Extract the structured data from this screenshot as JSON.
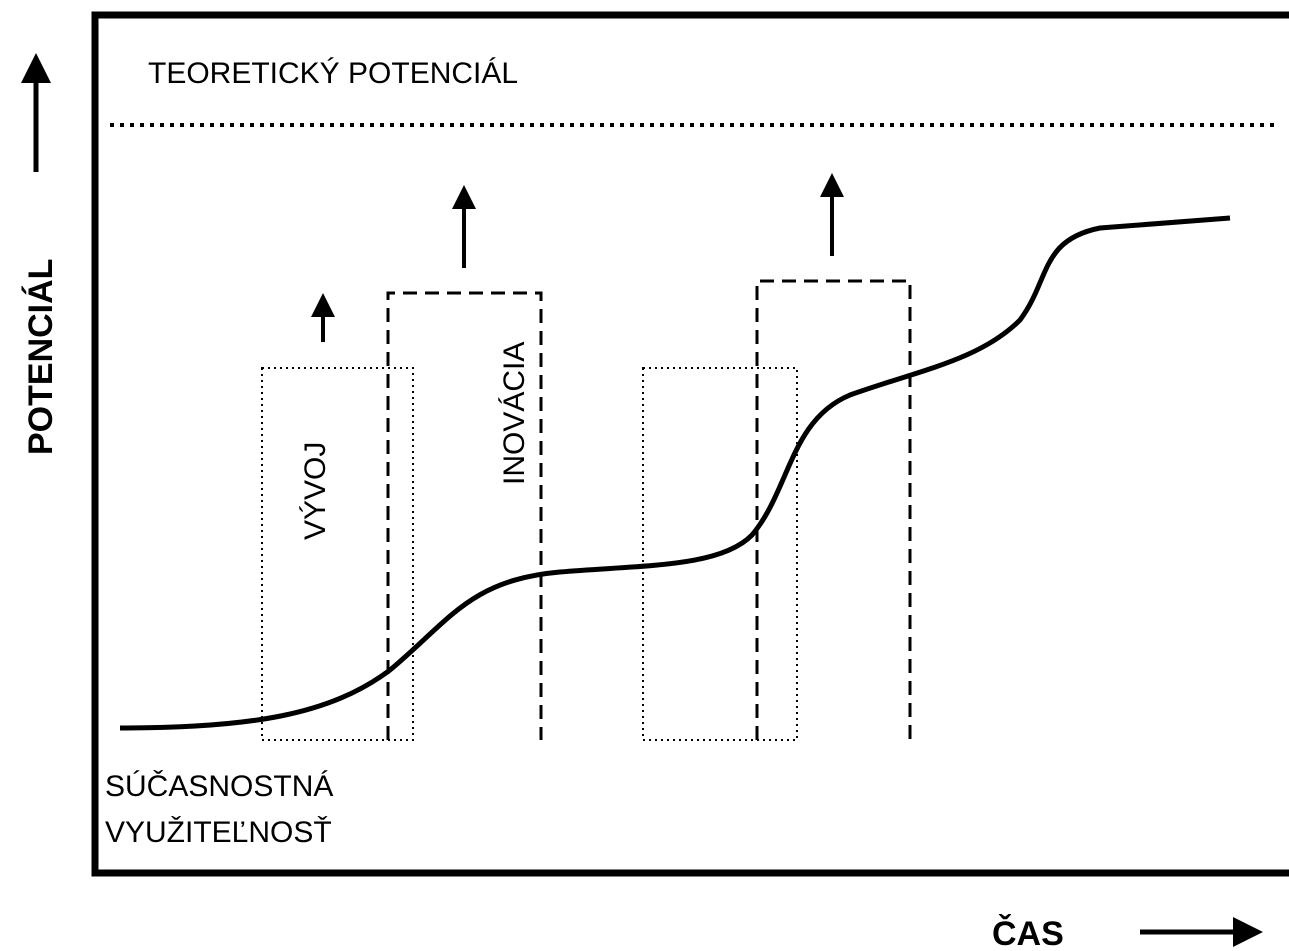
{
  "y_axis_label": "POTENCIÁL",
  "x_axis_label": "ČAS",
  "theoretical_label": "TEORETICKÝ POTENCIÁL",
  "box_labels": [
    "VÝVOJ",
    "INOVÁCIA"
  ],
  "current_label": [
    "SÚČASNOSTNÁ",
    "VYUŽITEĽNOSŤ"
  ]
}
